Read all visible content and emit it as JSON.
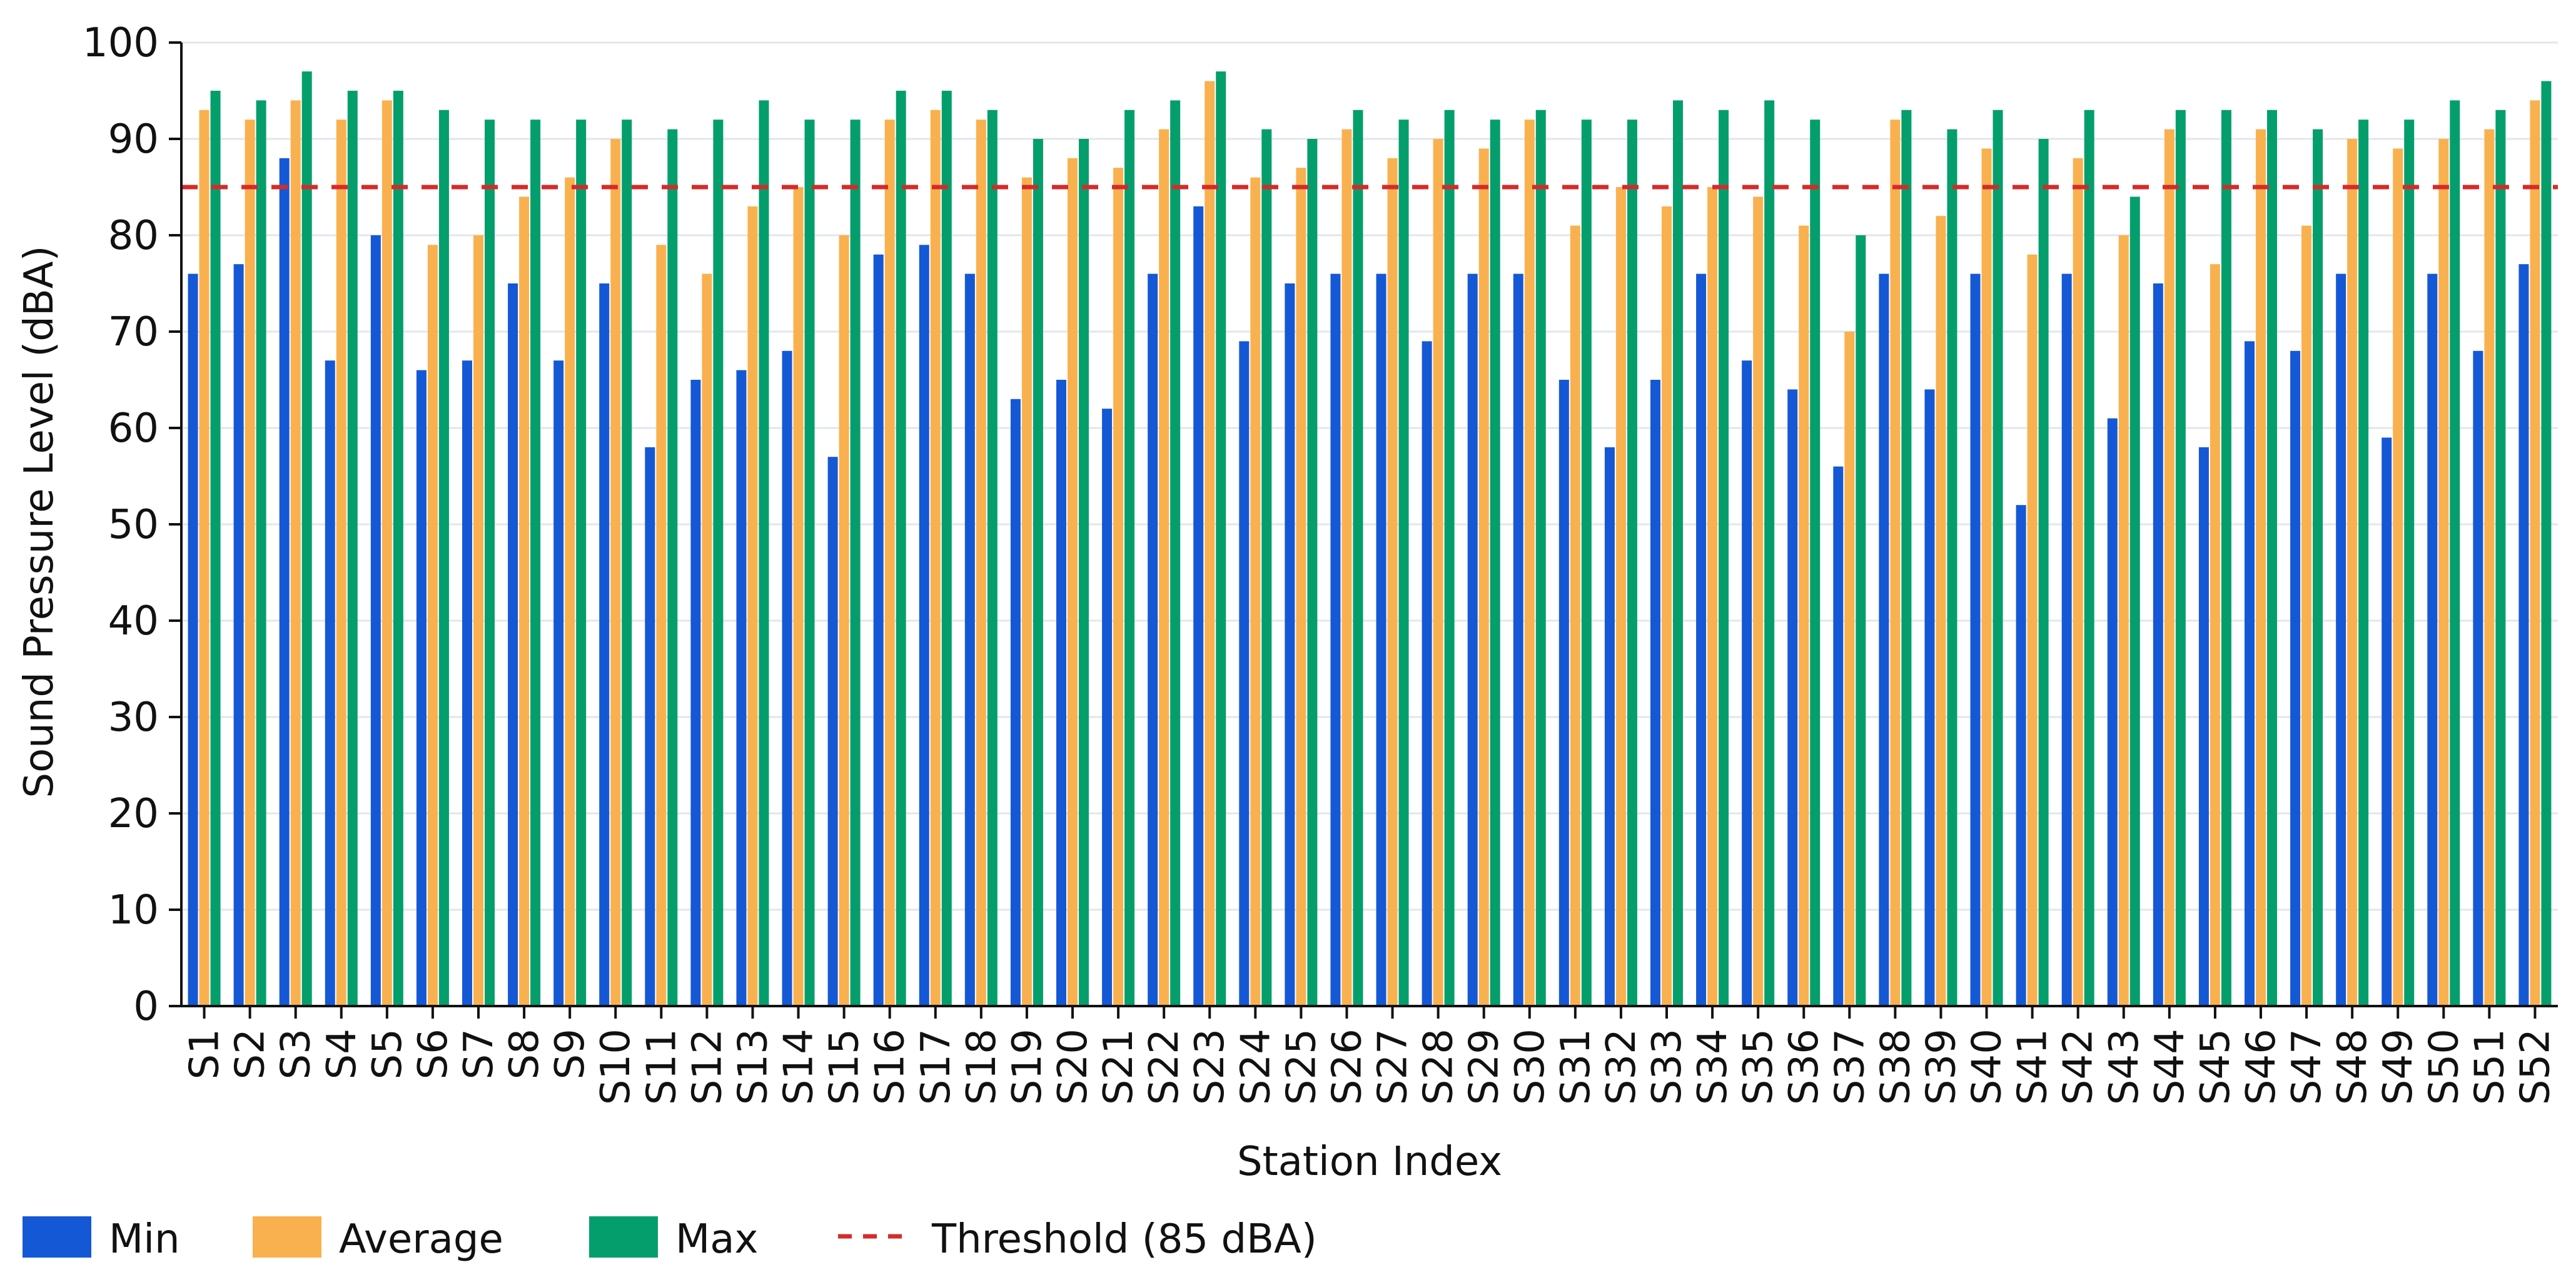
{
  "chart_data": {
    "type": "bar",
    "title": "",
    "xlabel": "Station Index",
    "ylabel": "Sound Pressure Level (dBA)",
    "ylim": [
      0,
      100
    ],
    "yticks": [
      0,
      10,
      20,
      30,
      40,
      50,
      60,
      70,
      80,
      90,
      100
    ],
    "grid": true,
    "legend_position": "bottom-left",
    "categories": [
      "S1",
      "S2",
      "S3",
      "S4",
      "S5",
      "S6",
      "S7",
      "S8",
      "S9",
      "S10",
      "S11",
      "S12",
      "S13",
      "S14",
      "S15",
      "S16",
      "S17",
      "S18",
      "S19",
      "S20",
      "S21",
      "S22",
      "S23",
      "S24",
      "S25",
      "S26",
      "S27",
      "S28",
      "S29",
      "S30",
      "S31",
      "S32",
      "S33",
      "S34",
      "S35",
      "S36",
      "S37",
      "S38",
      "S39",
      "S40",
      "S41",
      "S42",
      "S43",
      "S44",
      "S45",
      "S46",
      "S47",
      "S48",
      "S49",
      "S50",
      "S51",
      "S52"
    ],
    "series": [
      {
        "name": "Min",
        "color": "#1558D6",
        "values": [
          76,
          77,
          88,
          67,
          80,
          66,
          67,
          75,
          67,
          75,
          58,
          65,
          66,
          68,
          57,
          78,
          79,
          76,
          63,
          65,
          62,
          76,
          83,
          69,
          75,
          76,
          76,
          69,
          76,
          76,
          65,
          58,
          65,
          76,
          67,
          64,
          56,
          76,
          64,
          76,
          52,
          76,
          61,
          75,
          58,
          69,
          68,
          76,
          59,
          76,
          68,
          77
        ]
      },
      {
        "name": "Average",
        "color": "#F9B14F",
        "values": [
          93,
          92,
          94,
          92,
          94,
          79,
          80,
          84,
          86,
          90,
          79,
          76,
          83,
          85,
          80,
          92,
          93,
          92,
          86,
          88,
          87,
          91,
          96,
          86,
          87,
          91,
          88,
          90,
          89,
          92,
          81,
          85,
          83,
          85,
          84,
          81,
          70,
          92,
          82,
          89,
          78,
          88,
          80,
          91,
          77,
          91,
          81,
          90,
          89,
          90,
          91,
          94
        ]
      },
      {
        "name": "Max",
        "color": "#049E6C",
        "values": [
          95,
          94,
          97,
          95,
          95,
          93,
          92,
          92,
          92,
          92,
          91,
          92,
          94,
          92,
          92,
          95,
          95,
          93,
          90,
          90,
          93,
          94,
          97,
          91,
          90,
          93,
          92,
          93,
          92,
          93,
          92,
          92,
          94,
          93,
          94,
          92,
          80,
          93,
          91,
          93,
          90,
          93,
          84,
          93,
          93,
          93,
          91,
          92,
          92,
          94,
          93,
          96
        ]
      }
    ],
    "threshold": {
      "name": "Threshold (85 dBA)",
      "value": 85,
      "color": "#D42B2B"
    }
  }
}
